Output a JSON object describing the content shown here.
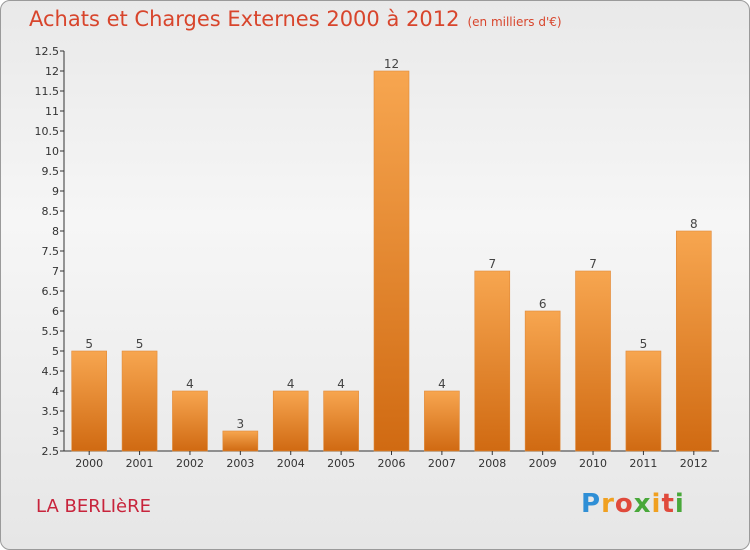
{
  "header": {
    "title": "Achats et Charges Externes 2000 à 2012",
    "unit": "(en milliers d'€)"
  },
  "footer": {
    "town": "LA BERLIèRE",
    "brand": "Proxiti"
  },
  "colors": {
    "bar_top": "#f7a650",
    "bar_bottom": "#d06a12",
    "title": "#d8452c",
    "town": "#c8243c"
  },
  "chart_data": {
    "type": "bar",
    "title": "Achats et Charges Externes 2000 à 2012",
    "subtitle": "(en milliers d'€)",
    "xlabel": "",
    "ylabel": "",
    "categories": [
      "2000",
      "2001",
      "2002",
      "2003",
      "2004",
      "2005",
      "2006",
      "2007",
      "2008",
      "2009",
      "2010",
      "2011",
      "2012"
    ],
    "values": [
      5,
      5,
      4,
      3,
      4,
      4,
      12,
      4,
      7,
      6,
      7,
      5,
      8
    ],
    "ylim": [
      2.5,
      12.5
    ],
    "yticks": [
      2.5,
      3,
      3.5,
      4,
      4.5,
      5,
      5.5,
      6,
      6.5,
      7,
      7.5,
      8,
      8.5,
      9,
      9.5,
      10,
      10.5,
      11,
      11.5,
      12,
      12.5
    ],
    "grid": false,
    "legend": "none"
  }
}
